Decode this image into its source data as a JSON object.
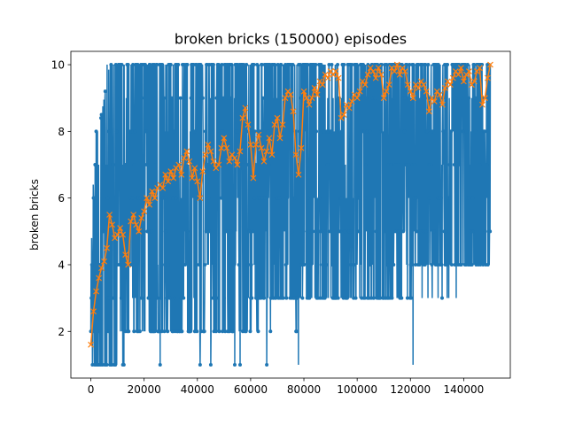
{
  "chart_data": {
    "type": "line",
    "title": "broken bricks (150000) episodes",
    "xlabel": "",
    "ylabel": "broken bricks",
    "xlim": [
      -7500,
      157500
    ],
    "ylim": [
      0.6,
      10.4
    ],
    "xticks": [
      0,
      20000,
      40000,
      60000,
      80000,
      100000,
      120000,
      140000
    ],
    "yticks": [
      2,
      4,
      6,
      8,
      10
    ],
    "grid": false,
    "legend": "none",
    "series": [
      {
        "style": "raw-per-episode",
        "color": "#1f77b4",
        "marker": "dot",
        "points": 1500,
        "min": 1,
        "max": 10,
        "upper_envelope": [
          [
            0,
            4
          ],
          [
            1500,
            8
          ],
          [
            3000,
            8
          ],
          [
            5000,
            9
          ],
          [
            7000,
            10
          ],
          [
            10000,
            10
          ],
          [
            20000,
            10
          ],
          [
            60000,
            10
          ],
          [
            100000,
            10
          ],
          [
            150000,
            10
          ]
        ],
        "lower_envelope": [
          [
            0,
            1
          ],
          [
            10000,
            1
          ],
          [
            20000,
            1.5
          ],
          [
            40000,
            1.8
          ],
          [
            60000,
            2
          ],
          [
            80000,
            2.5
          ],
          [
            90000,
            2.8
          ],
          [
            100000,
            3
          ],
          [
            120000,
            3
          ],
          [
            140000,
            3.3
          ],
          [
            150000,
            4
          ]
        ],
        "outliers_low": [
          [
            12000,
            1
          ],
          [
            26000,
            1
          ],
          [
            41000,
            1
          ],
          [
            45000,
            1
          ],
          [
            54000,
            1
          ],
          [
            56000,
            1
          ],
          [
            66000,
            1
          ],
          [
            78000,
            1
          ],
          [
            121000,
            1
          ]
        ]
      },
      {
        "style": "moving-average",
        "color": "#ff7f0e",
        "marker": "x",
        "x": [
          0,
          1000,
          2000,
          3000,
          4000,
          5000,
          6000,
          7000,
          8000,
          9000,
          10000,
          11000,
          12000,
          13000,
          14000,
          15000,
          16000,
          17000,
          18000,
          19000,
          20000,
          21000,
          22000,
          23000,
          24000,
          25000,
          26000,
          27000,
          28000,
          29000,
          30000,
          31000,
          32000,
          33000,
          34000,
          35000,
          36000,
          37000,
          38000,
          39000,
          40000,
          41000,
          42000,
          43000,
          44000,
          45000,
          46000,
          47000,
          48000,
          49000,
          50000,
          51000,
          52000,
          53000,
          54000,
          55000,
          56000,
          57000,
          58000,
          59000,
          60000,
          61000,
          62000,
          63000,
          64000,
          65000,
          66000,
          67000,
          68000,
          69000,
          70000,
          71000,
          72000,
          73000,
          74000,
          75000,
          76000,
          77000,
          78000,
          79000,
          80000,
          81000,
          82000,
          83000,
          84000,
          85000,
          86000,
          87000,
          88000,
          89000,
          90000,
          91000,
          92000,
          93000,
          94000,
          95000,
          96000,
          97000,
          98000,
          99000,
          100000,
          101000,
          102000,
          103000,
          104000,
          105000,
          106000,
          107000,
          108000,
          109000,
          110000,
          111000,
          112000,
          113000,
          114000,
          115000,
          116000,
          117000,
          118000,
          119000,
          120000,
          121000,
          122000,
          123000,
          124000,
          125000,
          126000,
          127000,
          128000,
          129000,
          130000,
          131000,
          132000,
          133000,
          134000,
          135000,
          136000,
          137000,
          138000,
          139000,
          140000,
          141000,
          142000,
          143000,
          144000,
          145000,
          146000,
          147000,
          148000,
          149000,
          150000
        ],
        "y": [
          1.6,
          2.6,
          3.2,
          3.6,
          3.9,
          4.1,
          4.5,
          5.5,
          5.2,
          4.8,
          4.9,
          5.1,
          4.9,
          4.3,
          4.0,
          5.3,
          5.5,
          5.2,
          5.0,
          5.4,
          5.6,
          6.0,
          5.8,
          6.2,
          6.0,
          6.3,
          6.4,
          6.3,
          6.7,
          6.5,
          6.8,
          6.6,
          6.9,
          7.0,
          6.7,
          7.2,
          7.4,
          7.1,
          6.6,
          6.9,
          6.5,
          6.0,
          6.8,
          7.3,
          7.6,
          7.4,
          7.1,
          6.9,
          7.0,
          7.5,
          7.8,
          7.5,
          7.1,
          7.3,
          7.2,
          7.0,
          7.4,
          8.4,
          8.7,
          8.2,
          7.6,
          6.6,
          7.6,
          7.9,
          7.5,
          7.1,
          7.4,
          7.8,
          7.3,
          8.2,
          8.4,
          7.8,
          8.2,
          9.0,
          9.2,
          9.1,
          8.6,
          7.3,
          6.7,
          7.5,
          9.2,
          9.0,
          8.8,
          9.0,
          9.3,
          9.1,
          9.5,
          9.4,
          9.7,
          9.6,
          9.8,
          9.7,
          9.8,
          9.6,
          8.4,
          8.5,
          8.8,
          8.7,
          8.9,
          9.1,
          9.0,
          9.2,
          9.5,
          9.4,
          9.7,
          9.9,
          9.8,
          9.6,
          9.9,
          9.7,
          9.0,
          9.2,
          9.4,
          9.9,
          9.8,
          10.0,
          9.7,
          9.9,
          9.8,
          9.4,
          9.2,
          9.0,
          9.4,
          9.3,
          9.5,
          9.4,
          9.2,
          8.6,
          9.0,
          8.9,
          9.2,
          9.1,
          8.8,
          9.3,
          9.5,
          9.4,
          9.6,
          9.8,
          9.7,
          9.9,
          9.5,
          9.7,
          9.8,
          9.4,
          9.5,
          9.8,
          9.9,
          8.8,
          9.0,
          9.6,
          10.0
        ]
      }
    ]
  }
}
